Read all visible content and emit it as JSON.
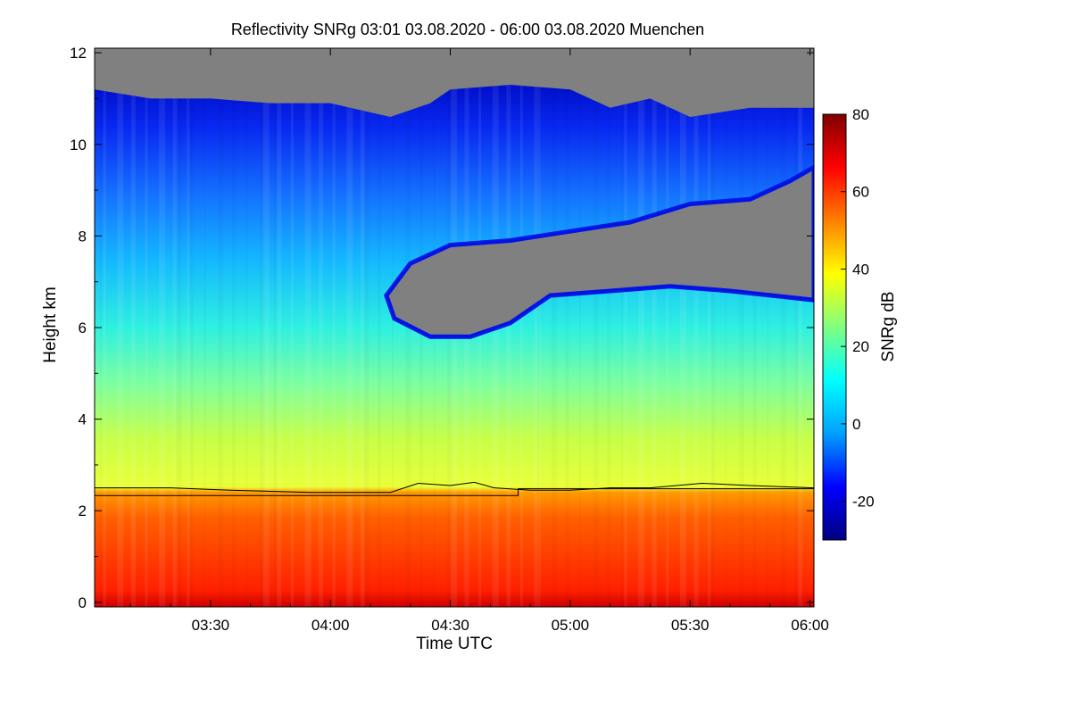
{
  "chart_data": {
    "type": "heatmap",
    "title": "Reflectivity SNRg   03:01 03.08.2020 - 06:00 03.08.2020 Muenchen",
    "xlabel": "Time UTC",
    "ylabel": "Height km",
    "x_ticks": [
      "03:30",
      "04:00",
      "04:30",
      "05:00",
      "05:30",
      "06:00"
    ],
    "x_tick_minutes": [
      210,
      240,
      270,
      300,
      330,
      360
    ],
    "xlim_minutes": [
      181,
      361
    ],
    "y_ticks": [
      0,
      2,
      4,
      6,
      8,
      10,
      12
    ],
    "ylim": [
      -0.1,
      12.1
    ],
    "colorbar": {
      "label": "SNRg dB",
      "ticks": [
        -20,
        0,
        20,
        40,
        60,
        80
      ],
      "range": [
        -30,
        80
      ],
      "colors": [
        "#000080",
        "#0000ff",
        "#00a0ff",
        "#00ffff",
        "#80ff80",
        "#ffff00",
        "#ff8000",
        "#ff0000",
        "#800000"
      ]
    },
    "no_signal_color": "#808080",
    "echo_top_km": [
      [
        181,
        11.2
      ],
      [
        195,
        11.0
      ],
      [
        210,
        11.0
      ],
      [
        225,
        10.9
      ],
      [
        240,
        10.9
      ],
      [
        255,
        10.6
      ],
      [
        265,
        10.9
      ],
      [
        270,
        11.2
      ],
      [
        285,
        11.3
      ],
      [
        300,
        11.2
      ],
      [
        310,
        10.8
      ],
      [
        320,
        11.0
      ],
      [
        330,
        10.6
      ],
      [
        345,
        10.8
      ],
      [
        361,
        10.8
      ]
    ],
    "cloud_gap_km": {
      "top": [
        [
          254,
          6.7
        ],
        [
          260,
          7.4
        ],
        [
          270,
          7.8
        ],
        [
          285,
          7.9
        ],
        [
          300,
          8.1
        ],
        [
          315,
          8.3
        ],
        [
          330,
          8.7
        ],
        [
          345,
          8.8
        ],
        [
          355,
          9.2
        ],
        [
          361,
          9.5
        ]
      ],
      "bottom": [
        [
          254,
          6.7
        ],
        [
          256,
          6.2
        ],
        [
          265,
          5.8
        ],
        [
          275,
          5.8
        ],
        [
          285,
          6.1
        ],
        [
          295,
          6.7
        ],
        [
          310,
          6.8
        ],
        [
          325,
          6.9
        ],
        [
          340,
          6.8
        ],
        [
          361,
          6.6
        ]
      ]
    },
    "melting_layer_km": [
      [
        181,
        2.5
      ],
      [
        200,
        2.5
      ],
      [
        215,
        2.45
      ],
      [
        235,
        2.4
      ],
      [
        255,
        2.4
      ],
      [
        262,
        2.6
      ],
      [
        270,
        2.55
      ],
      [
        276,
        2.62
      ],
      [
        281,
        2.5
      ],
      [
        290,
        2.45
      ],
      [
        300,
        2.45
      ],
      [
        310,
        2.5
      ],
      [
        320,
        2.5
      ],
      [
        333,
        2.6
      ],
      [
        345,
        2.55
      ],
      [
        361,
        2.5
      ]
    ],
    "reference_level_km": [
      [
        181,
        2.33
      ],
      [
        287,
        2.33
      ],
      [
        287,
        2.48
      ],
      [
        361,
        2.48
      ]
    ]
  }
}
